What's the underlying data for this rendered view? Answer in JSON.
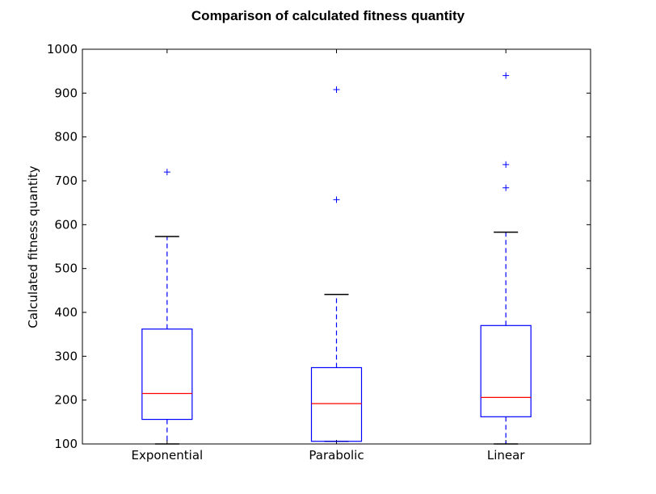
{
  "chart_data": {
    "type": "box",
    "title": "Comparison of calculated fitness quantity",
    "xlabel": "",
    "ylabel": "Calculated fitness quantity",
    "ylim": [
      100,
      1000
    ],
    "yticks": [
      "100",
      "200",
      "300",
      "400",
      "500",
      "600",
      "700",
      "800",
      "900",
      "1000"
    ],
    "categories": [
      "Exponential",
      "Parabolic",
      "Linear"
    ],
    "boxes": [
      {
        "category": "Exponential",
        "whisker_low": 100,
        "q1": 156,
        "median": 215,
        "q3": 362,
        "whisker_high": 573,
        "outliers": [
          720
        ]
      },
      {
        "category": "Parabolic",
        "whisker_low": 106,
        "q1": 106,
        "median": 192,
        "q3": 274,
        "whisker_high": 441,
        "outliers": [
          657,
          908
        ]
      },
      {
        "category": "Linear",
        "whisker_low": 100,
        "q1": 162,
        "median": 206,
        "q3": 370,
        "whisker_high": 583,
        "outliers": [
          684,
          737,
          940
        ]
      }
    ],
    "grid": false,
    "legend": "none",
    "colors": {
      "box": "#0000ff",
      "median": "#ff0000",
      "whisker": "#0000ff",
      "cap": "#000000",
      "outlier": "#0000ff"
    }
  }
}
